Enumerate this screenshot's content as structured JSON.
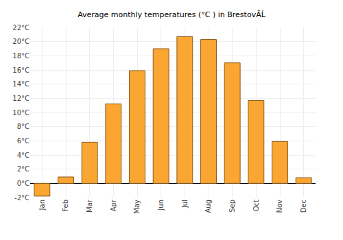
{
  "chart_data": {
    "type": "bar",
    "title": "Average monthly temperatures (°C ) in BrestovĂĹ",
    "categories": [
      "Jan",
      "Feb",
      "Mar",
      "Apr",
      "May",
      "Jun",
      "Jul",
      "Aug",
      "Sep",
      "Oct",
      "Nov",
      "Dec"
    ],
    "values": [
      -1.8,
      0.9,
      5.8,
      11.2,
      15.9,
      19.0,
      20.7,
      20.3,
      17.0,
      11.7,
      5.9,
      0.8
    ],
    "color": "#fba632",
    "ylim": [
      -2,
      22
    ],
    "yticks": [
      {
        "value": -2,
        "label": "-2°C"
      },
      {
        "value": 0,
        "label": "0°C"
      },
      {
        "value": 2,
        "label": "2°C"
      },
      {
        "value": 4,
        "label": "4°C"
      },
      {
        "value": 6,
        "label": "6°C"
      },
      {
        "value": 8,
        "label": "8°C"
      },
      {
        "value": 10,
        "label": "10°C"
      },
      {
        "value": 12,
        "label": "12°C"
      },
      {
        "value": 14,
        "label": "14°C"
      },
      {
        "value": 16,
        "label": "16°C"
      },
      {
        "value": 18,
        "label": "18°C"
      },
      {
        "value": 20,
        "label": "20°C"
      },
      {
        "value": 22,
        "label": "22°C"
      }
    ],
    "grid": true
  }
}
